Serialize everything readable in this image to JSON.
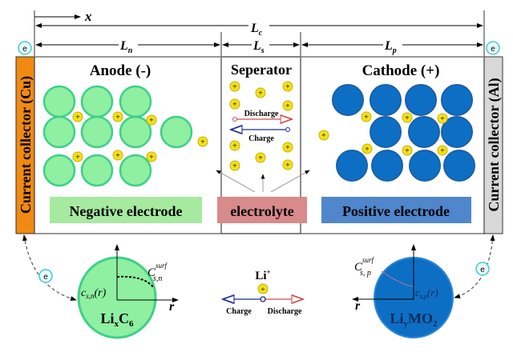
{
  "dimensions": {
    "x": "x",
    "Lc": "L",
    "Lc_sub": "c",
    "Ln": "L",
    "Ln_sub": "n",
    "Ls": "L",
    "Ls_sub": "s",
    "Lp": "L",
    "Lp_sub": "p"
  },
  "regions": {
    "anode": "Anode (-)",
    "separator": "Seperator",
    "cathode": "Cathode (+)"
  },
  "collectors": {
    "left": "Current collector (Cu)",
    "right": "Current collector (Al)"
  },
  "labels": {
    "negative": "Negative electrode",
    "electrolyte": "electrolyte",
    "positive": "Positive electrode"
  },
  "separator_arrows": {
    "discharge": "Discharge",
    "charge": "Charge"
  },
  "electron": "e",
  "ion": "+",
  "bottom": {
    "anode_particle": {
      "base": "Li",
      "sub1": "x",
      "mid": "C",
      "sub2": "6",
      "csurf": "C",
      "csurf_sub": "s,n",
      "csurf_sup": "surf",
      "cr": "c",
      "cr_sub": "s,n",
      "cr_tail": "(r)",
      "axis": "r"
    },
    "cathode_particle": {
      "base": "Li",
      "sub1": "y",
      "mid": "MO",
      "sub2": "2",
      "csurf": "C",
      "csurf_sub": "s, p",
      "csurf_sup": "surf",
      "cr": "c",
      "cr_sub": "s,p",
      "cr_tail": "(r)",
      "axis": "r"
    },
    "li_ion": "Li",
    "li_sup": "+",
    "charge": "Charge",
    "discharge": "Discharge"
  },
  "colors": {
    "anode": "#8ef0a0",
    "anode_stroke": "#3fd08a",
    "cathode": "#0d6fc4",
    "ion": "#f5e11a",
    "neg_label": "#a6eaa0",
    "electrolyte_label": "#d98a8a",
    "pos_label": "#4f86cc",
    "cu": "#f08a12",
    "al": "#d8d8d8",
    "discharge": "#d24a4a",
    "charge": "#1a2a9a"
  }
}
